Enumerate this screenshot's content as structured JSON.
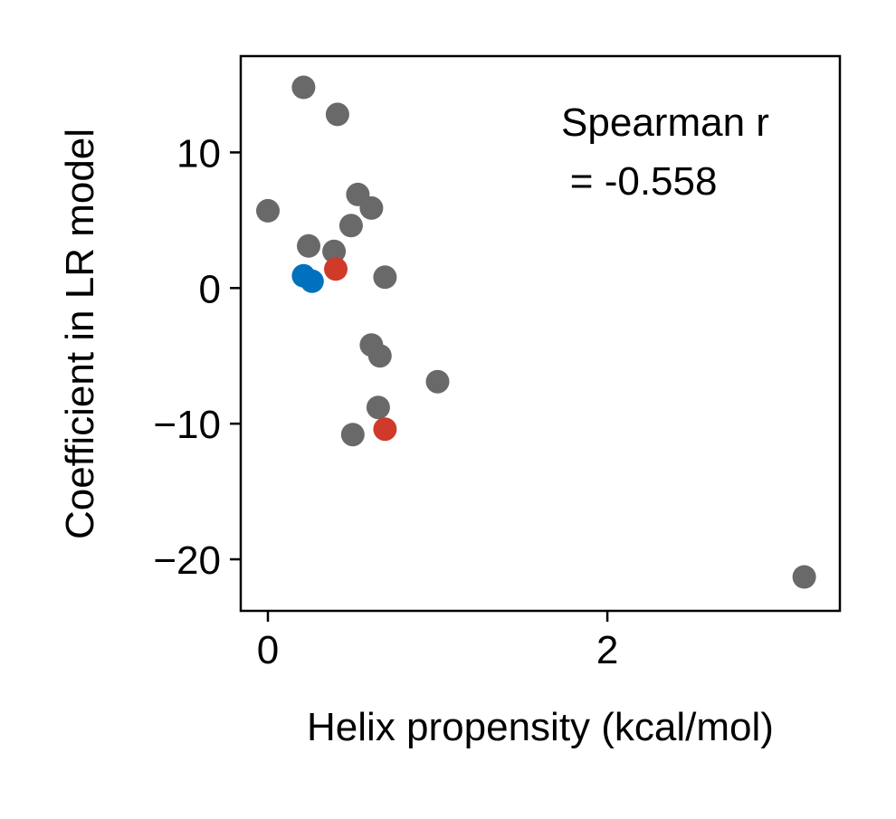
{
  "chart_data": {
    "type": "scatter",
    "title": "",
    "xlabel": "Helix propensity (kcal/mol)",
    "ylabel": "Coefficient in LR model",
    "xlim": [
      -0.16,
      3.37
    ],
    "ylim": [
      -23.8,
      17.1
    ],
    "xticks": [
      0,
      2
    ],
    "xtick_labels": [
      "0",
      "2"
    ],
    "yticks": [
      -20,
      -10,
      0,
      10
    ],
    "ytick_labels": [
      "−20",
      "−10",
      "0",
      "10"
    ],
    "grid": false,
    "legend": "none",
    "annotation": {
      "line1": "Spearman r",
      "line2": " = -0.558"
    },
    "colors": {
      "gray": "#696969",
      "red": "#d03a2a",
      "blue": "#0072bd"
    },
    "points": [
      {
        "x": 0.21,
        "y": 14.8,
        "color": "gray"
      },
      {
        "x": 0.41,
        "y": 12.8,
        "color": "gray"
      },
      {
        "x": 0.0,
        "y": 5.7,
        "color": "gray"
      },
      {
        "x": 0.53,
        "y": 6.9,
        "color": "gray"
      },
      {
        "x": 0.61,
        "y": 5.9,
        "color": "gray"
      },
      {
        "x": 0.49,
        "y": 4.6,
        "color": "gray"
      },
      {
        "x": 0.24,
        "y": 3.1,
        "color": "gray"
      },
      {
        "x": 0.39,
        "y": 2.7,
        "color": "gray"
      },
      {
        "x": 0.69,
        "y": 0.8,
        "color": "gray"
      },
      {
        "x": 0.61,
        "y": -4.2,
        "color": "gray"
      },
      {
        "x": 0.66,
        "y": -5.0,
        "color": "gray"
      },
      {
        "x": 1.0,
        "y": -6.9,
        "color": "gray"
      },
      {
        "x": 0.65,
        "y": -8.8,
        "color": "gray"
      },
      {
        "x": 0.5,
        "y": -10.8,
        "color": "gray"
      },
      {
        "x": 3.16,
        "y": -21.3,
        "color": "gray"
      },
      {
        "x": 0.4,
        "y": 1.4,
        "color": "red"
      },
      {
        "x": 0.69,
        "y": -10.4,
        "color": "red"
      },
      {
        "x": 0.21,
        "y": 0.9,
        "color": "blue"
      },
      {
        "x": 0.26,
        "y": 0.5,
        "color": "blue"
      }
    ]
  }
}
